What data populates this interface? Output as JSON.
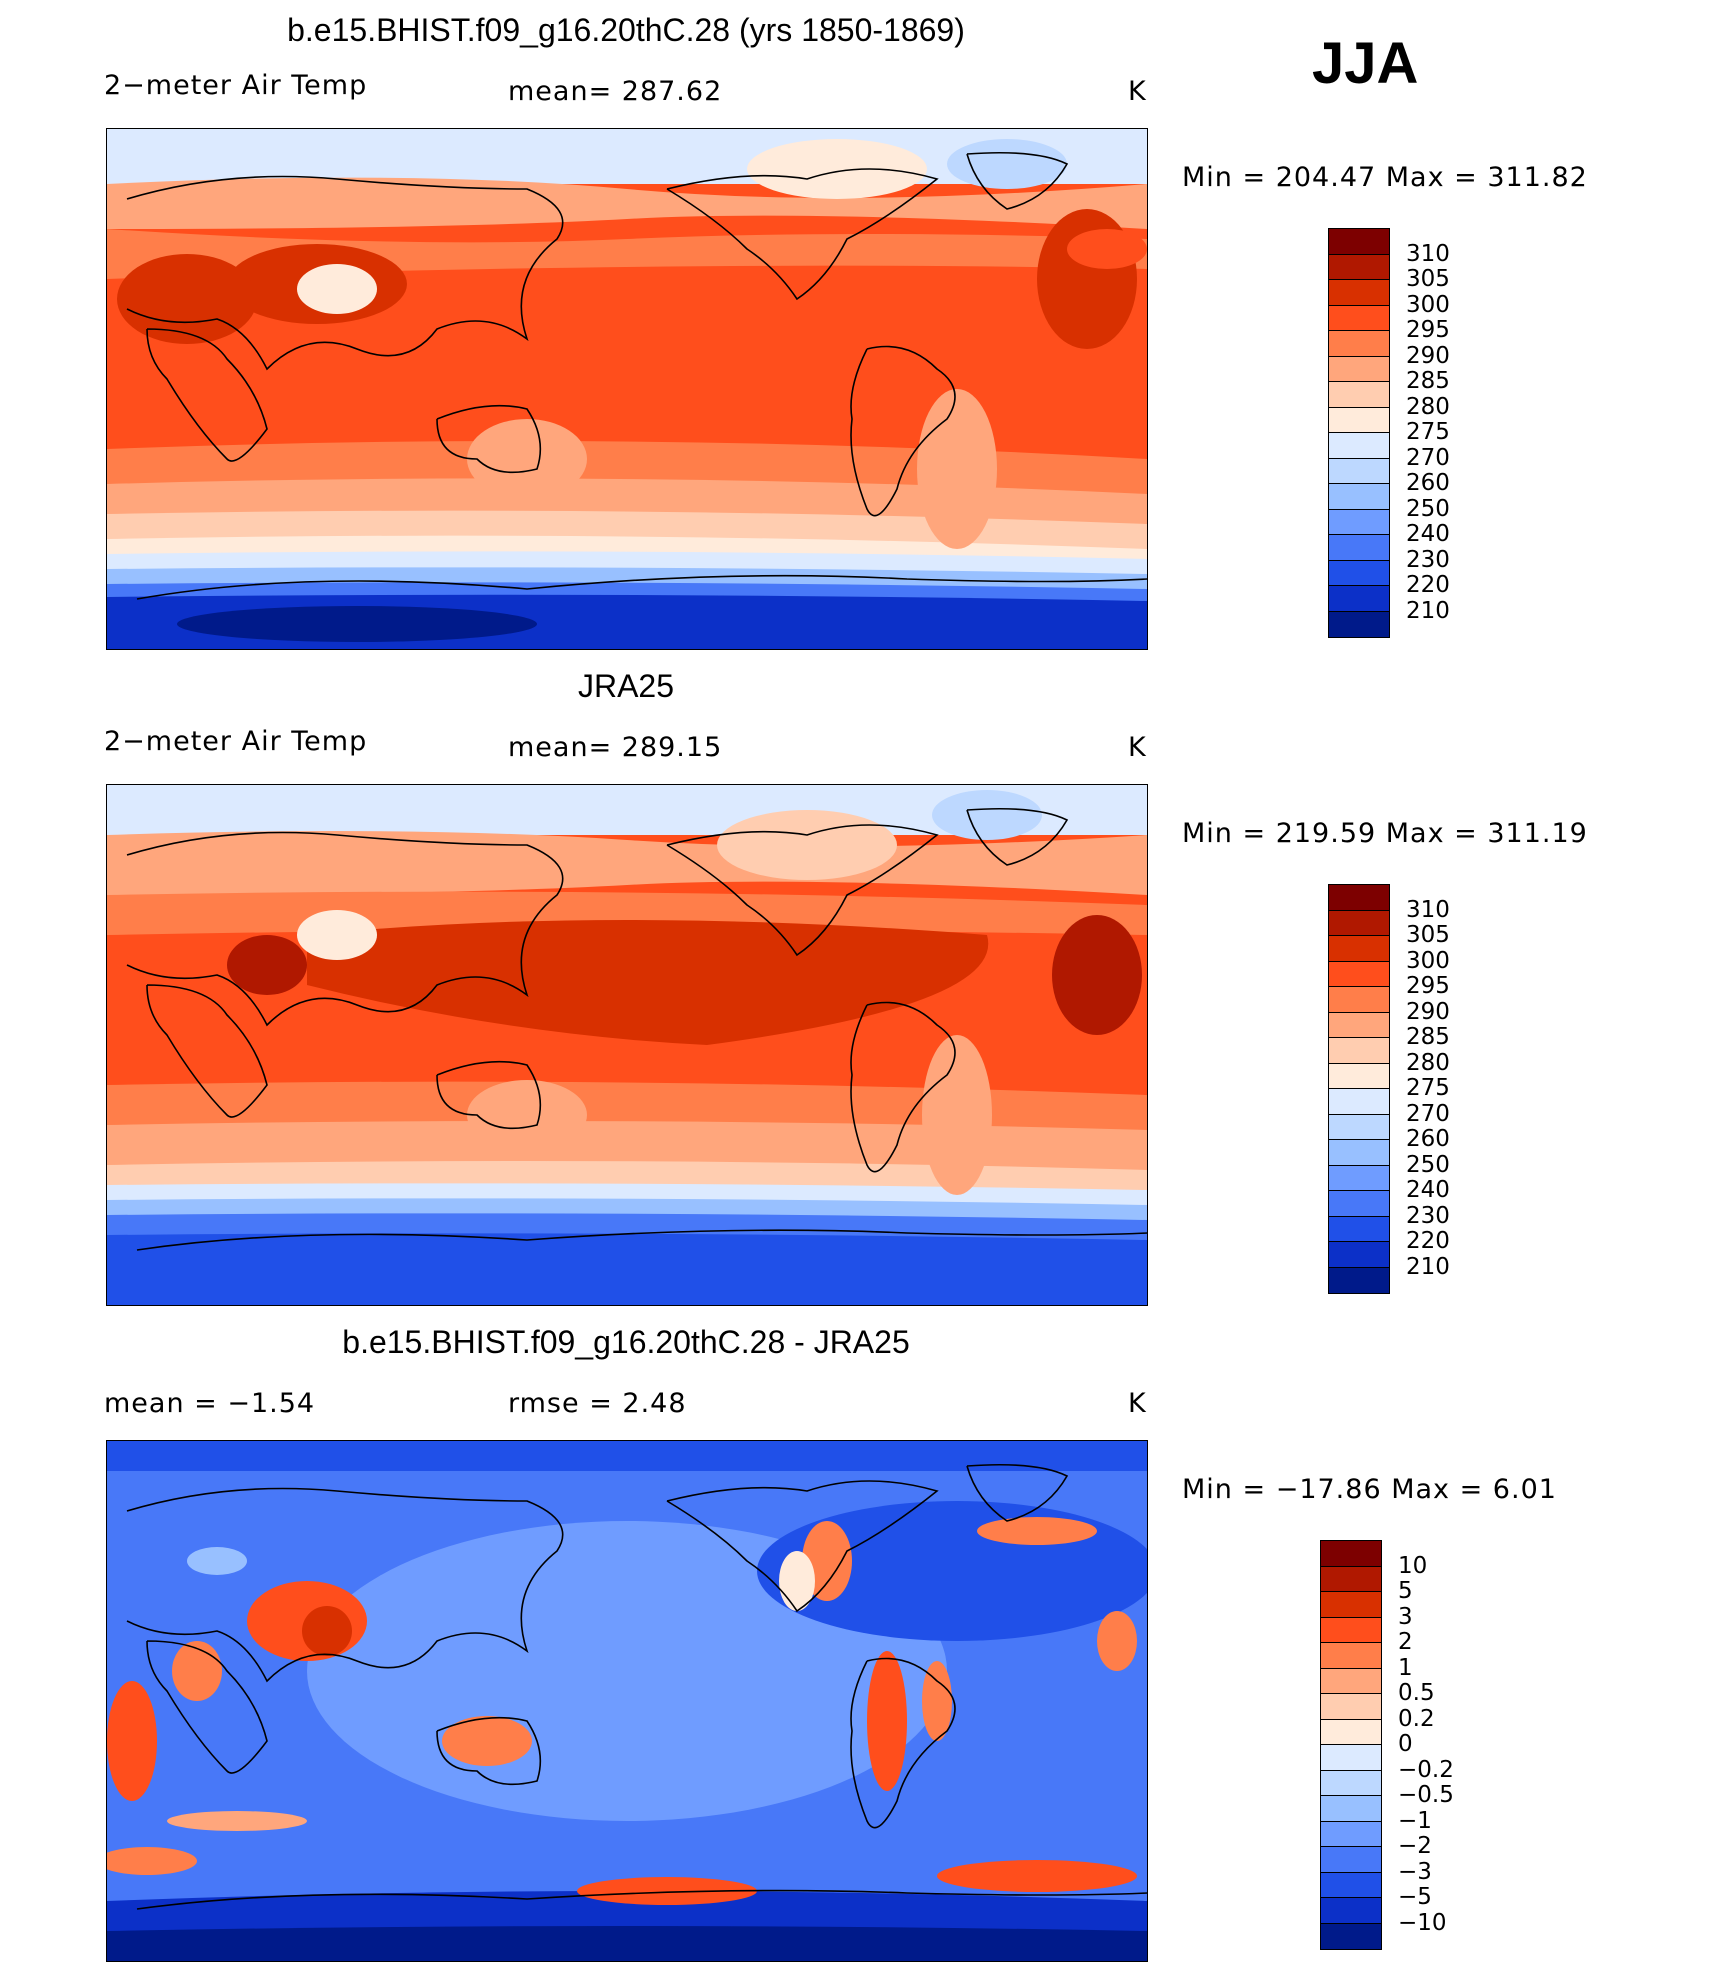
{
  "season": "JJA",
  "panels": [
    {
      "title": "b.e15.BHIST.f09_g16.20thC.28 (yrs 1850-1869)",
      "left_label": "2−meter Air Temp",
      "center_label": "mean= 287.62",
      "units": "K",
      "minmax": "Min  =  204.47  Max  =  311.82",
      "type": "abs"
    },
    {
      "title": "JRA25",
      "left_label": "2−meter Air Temp",
      "center_label": "mean= 289.15",
      "units": "K",
      "minmax": "Min  =  219.59  Max  =  311.19",
      "type": "abs"
    },
    {
      "title": "b.e15.BHIST.f09_g16.20thC.28 - JRA25",
      "left_label": "mean  =    −1.54",
      "center_label": "rmse  =     2.48",
      "units": "K",
      "minmax": "Min  =  −17.86  Max  =      6.01",
      "type": "diff"
    }
  ],
  "legend_abs": {
    "labels": [
      "310",
      "305",
      "300",
      "295",
      "290",
      "285",
      "280",
      "275",
      "270",
      "260",
      "250",
      "240",
      "230",
      "220",
      "210"
    ],
    "colors": [
      "#7d0000",
      "#b01800",
      "#d83000",
      "#ff4e1c",
      "#ff7e4a",
      "#ffa67c",
      "#ffcdb0",
      "#ffebdb",
      "#dceaff",
      "#bdd8ff",
      "#98c0ff",
      "#6f9cff",
      "#4878f8",
      "#2050e8",
      "#0c30c8",
      "#001a8a"
    ]
  },
  "legend_diff": {
    "labels": [
      "10",
      "5",
      "3",
      "2",
      "1",
      "0.5",
      "0.2",
      "0",
      "−0.2",
      "−0.5",
      "−1",
      "−2",
      "−3",
      "−5",
      "−10"
    ],
    "colors": [
      "#7d0000",
      "#b01800",
      "#d83000",
      "#ff4e1c",
      "#ff7e4a",
      "#ffa67c",
      "#ffcdb0",
      "#ffebdb",
      "#dceaff",
      "#bdd8ff",
      "#98c0ff",
      "#6f9cff",
      "#4878f8",
      "#2050e8",
      "#0c30c8",
      "#001a8a"
    ]
  }
}
